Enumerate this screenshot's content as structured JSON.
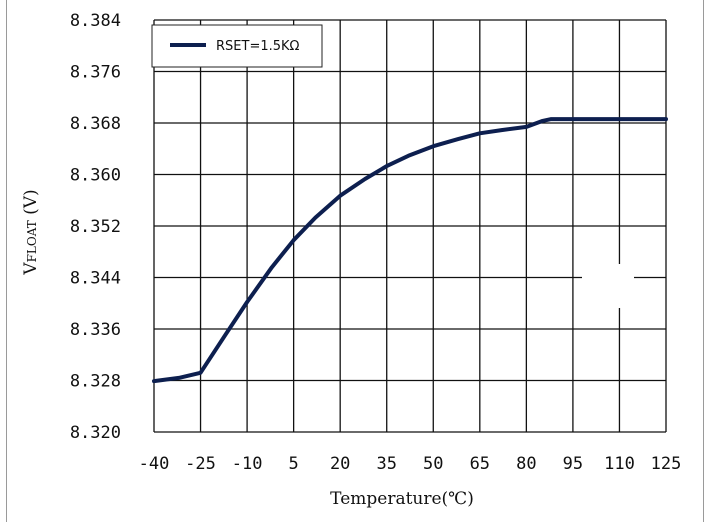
{
  "chart_data": {
    "type": "line",
    "xlabel": "Temperature(℃)",
    "ylabel_main": "V",
    "ylabel_sub": "FLOAT",
    "ylabel_unit": " (V)",
    "x_ticks": [
      "-40",
      "-25",
      "-10",
      "5",
      "20",
      "35",
      "50",
      "65",
      "80",
      "95",
      "110",
      "125"
    ],
    "y_ticks": [
      "8.384",
      "8.376",
      "8.368",
      "8.360",
      "8.352",
      "8.344",
      "8.336",
      "8.328",
      "8.320"
    ],
    "xlim": [
      -40,
      125
    ],
    "ylim": [
      8.32,
      8.384
    ],
    "grid": true,
    "legend_position": "top-left",
    "series": [
      {
        "name": "RSET=1.5KΩ",
        "color": "#0d1f4f",
        "x": [
          -40,
          -32,
          -25,
          -17,
          -10,
          -2,
          5,
          12,
          20,
          28,
          35,
          42,
          50,
          58,
          65,
          72,
          80,
          85,
          88,
          95,
          110,
          125
        ],
        "y": [
          8.3279,
          8.3284,
          8.3292,
          8.3351,
          8.3402,
          8.3456,
          8.3498,
          8.3533,
          8.3567,
          8.3593,
          8.3613,
          8.3629,
          8.3644,
          8.3655,
          8.3664,
          8.3669,
          8.3674,
          8.3683,
          8.3686,
          8.3686,
          8.3686,
          8.3686
        ]
      }
    ]
  }
}
